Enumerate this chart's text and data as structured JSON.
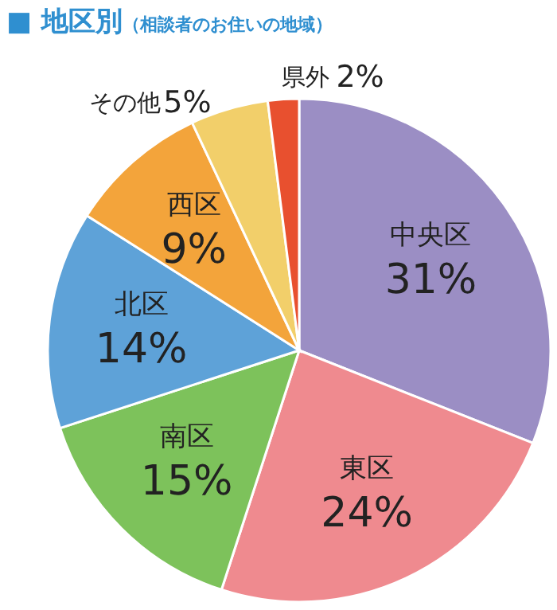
{
  "chart_data": {
    "type": "pie",
    "title": "■ 地区別",
    "subtitle": "（相談者のお住いの地域）",
    "categories": [
      "中央区",
      "東区",
      "南区",
      "北区",
      "西区",
      "その他",
      "県外"
    ],
    "values": [
      31,
      24,
      15,
      14,
      9,
      5,
      2
    ],
    "value_labels": [
      "31%",
      "24%",
      "15%",
      "14%",
      "9%",
      "5%",
      "2%"
    ],
    "colors": [
      "#9b8ec4",
      "#ef8a8f",
      "#7dc25b",
      "#5ea2d8",
      "#f3a43b",
      "#f2cf6a",
      "#e8502f"
    ]
  }
}
